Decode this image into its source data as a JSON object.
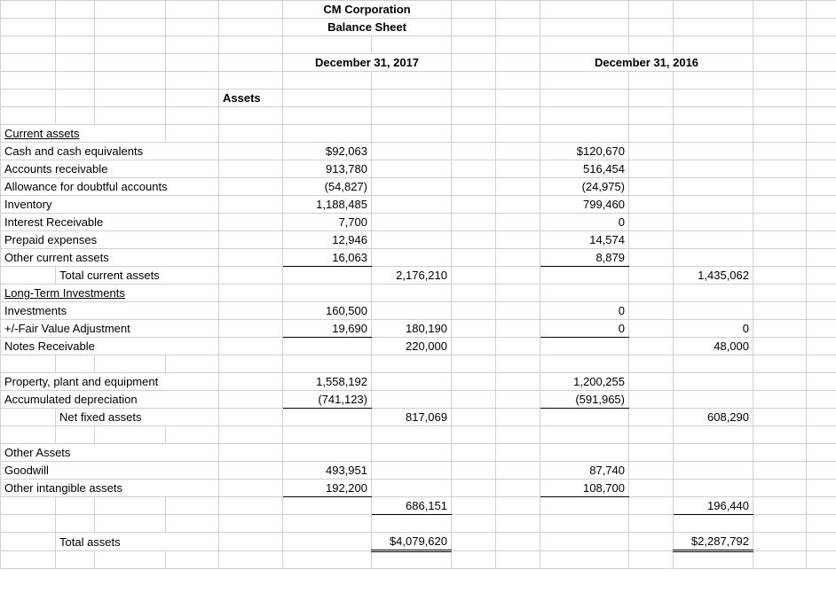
{
  "title": {
    "company": "CM Corporation",
    "sheet": "Balance Sheet"
  },
  "dates": {
    "d2017": "December 31, 2017",
    "d2016": "December 31, 2016"
  },
  "sections": {
    "assets": "Assets"
  },
  "headers": {
    "current_assets": "Current assets",
    "long_term": "Long-Term Investments",
    "other_assets": "Other Assets"
  },
  "rows": {
    "cash": {
      "label": "Cash and cash equivalents",
      "v2017": "$92,063",
      "v2016": "$120,670"
    },
    "ar": {
      "label": "Accounts receivable",
      "v2017": "913,780",
      "v2016": "516,454"
    },
    "allowance": {
      "label": "Allowance for doubtful accounts",
      "v2017": "(54,827)",
      "v2016": "(24,975)"
    },
    "inventory": {
      "label": "Inventory",
      "v2017": "1,188,485",
      "v2016": "799,460"
    },
    "interest": {
      "label": "Interest Receivable",
      "v2017": "7,700",
      "v2016": "0"
    },
    "prepaid": {
      "label": "Prepaid expenses",
      "v2017": "12,946",
      "v2016": "14,574"
    },
    "other_current": {
      "label": "Other current assets",
      "v2017": "16,063",
      "v2016": "8,879"
    },
    "total_current": {
      "label": "Total current assets",
      "t2017": "2,176,210",
      "t2016": "1,435,062"
    },
    "investments": {
      "label": "Investments",
      "v2017": "160,500",
      "v2016": "0"
    },
    "fair_value": {
      "label": "+/-Fair Value Adjustment",
      "v2017": "19,690",
      "t2017": "180,190",
      "v2016": "0",
      "t2016": "0"
    },
    "notes_rec": {
      "label": "Notes Receivable",
      "t2017": "220,000",
      "t2016": "48,000"
    },
    "ppe": {
      "label": "Property, plant and equipment",
      "v2017": "1,558,192",
      "v2016": "1,200,255"
    },
    "acc_dep": {
      "label": "Accumulated depreciation",
      "v2017": "(741,123)",
      "v2016": "(591,965)"
    },
    "net_fixed": {
      "label": "Net fixed assets",
      "t2017": "817,069",
      "t2016": "608,290"
    },
    "goodwill": {
      "label": "Goodwill",
      "v2017": "493,951",
      "v2016": "87,740"
    },
    "intangible": {
      "label": "Other intangible assets",
      "v2017": "192,200",
      "v2016": "108,700"
    },
    "other_total": {
      "t2017": "686,151",
      "t2016": "196,440"
    },
    "total_assets": {
      "label": "Total assets",
      "t2017": "$4,079,620",
      "t2016": "$2,287,792"
    }
  }
}
